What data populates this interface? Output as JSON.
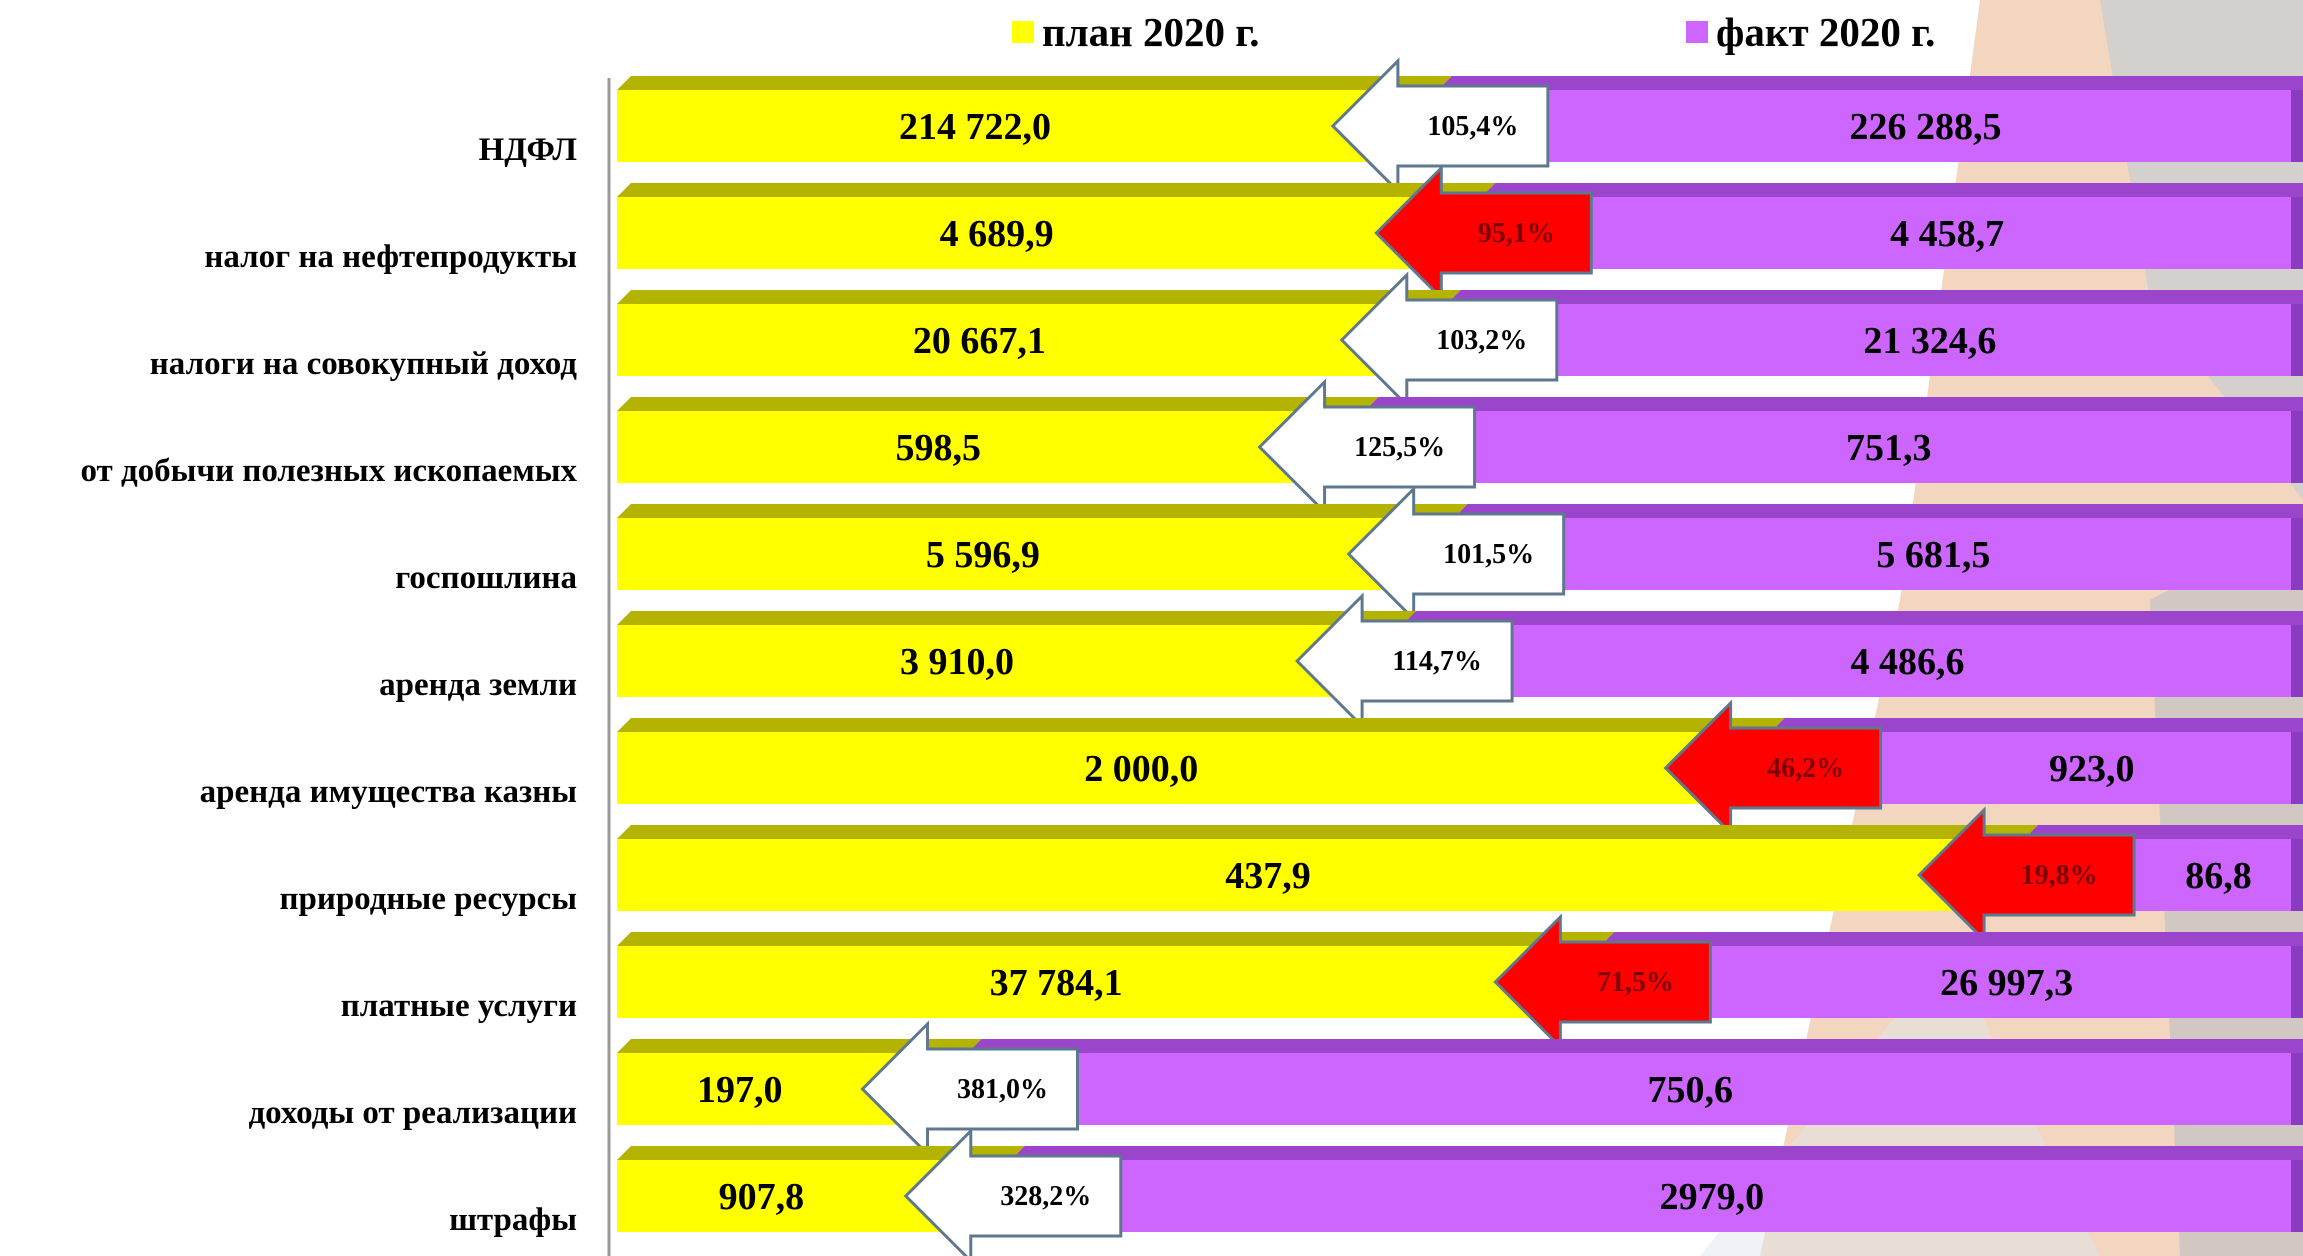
{
  "chart_data": {
    "type": "bar",
    "categories": [
      "НДФЛ",
      "налог на нефтепродукты",
      "налоги на совокупный доход",
      "от добычи полезных ископаемых",
      "госпошлина",
      "аренда земли",
      "аренда имущества казны",
      "природные ресурсы",
      "платные услуги",
      "доходы от реализации",
      "штрафы"
    ],
    "series": [
      {
        "name": "план 2020 г.",
        "color": "#ffff00",
        "labels": [
          "214 722,0",
          "4 689,9",
          "20 667,1",
          "598,5",
          "5 596,9",
          "3 910,0",
          "2 000,0",
          "437,9",
          "37 784,1",
          "197,0",
          "907,8"
        ],
        "values": [
          214722.0,
          4689.9,
          20667.1,
          598.5,
          5596.9,
          3910.0,
          2000.0,
          437.9,
          37784.1,
          197.0,
          907.8
        ]
      },
      {
        "name": "факт 2020 г.",
        "color": "#cc66ff",
        "labels": [
          "226 288,5",
          "4 458,7",
          "21 324,6",
          "751,3",
          "5 681,5",
          "4 486,6",
          "923,0",
          "86,8",
          "26 997,3",
          "750,6",
          "2979,0"
        ],
        "values": [
          226288.5,
          4458.7,
          21324.6,
          751.3,
          5681.5,
          4486.6,
          923.0,
          86.8,
          26997.3,
          750.6,
          2979.0
        ]
      }
    ],
    "percent": {
      "labels": [
        "105,4%",
        "95,1%",
        "103,2%",
        "125,5%",
        "101,5%",
        "114,7%",
        "46,2%",
        "19,8%",
        "71,5%",
        "381,0%",
        "328,2%"
      ],
      "values": [
        105.4,
        95.1,
        103.2,
        125.5,
        101.5,
        114.7,
        46.2,
        19.8,
        71.5,
        381.0,
        328.2
      ]
    },
    "normalization": "100% stacked",
    "arrow_colors": {
      "at_or_above_plan": "#ffffff",
      "below_plan": "#ff0000"
    },
    "grid": false,
    "legend_position": "top"
  }
}
